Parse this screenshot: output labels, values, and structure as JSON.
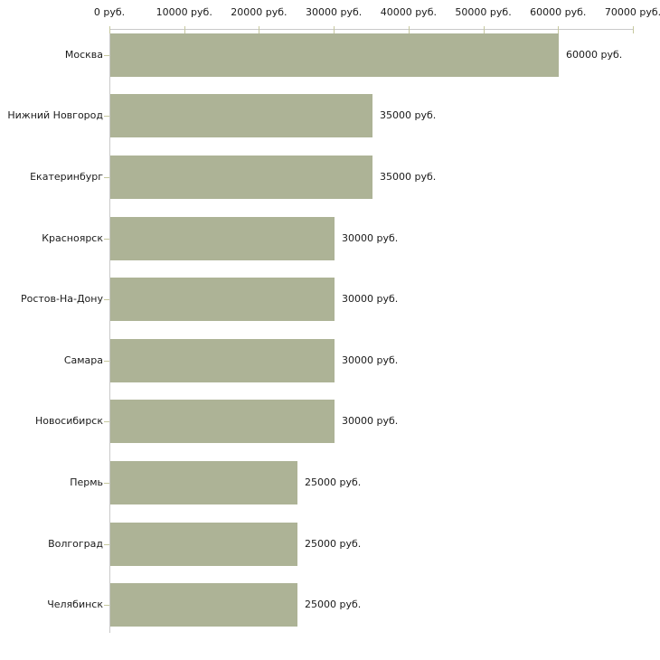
{
  "chart_data": {
    "type": "bar",
    "orientation": "horizontal",
    "title": "",
    "xlabel": "",
    "ylabel": "",
    "unit_suffix": " руб.",
    "categories": [
      "Москва",
      "Нижний Новгород",
      "Екатеринбург",
      "Красноярск",
      "Ростов-На-Дону",
      "Самара",
      "Новосибирск",
      "Пермь",
      "Волгоград",
      "Челябинск"
    ],
    "values": [
      60000,
      35000,
      35000,
      30000,
      30000,
      30000,
      30000,
      25000,
      25000,
      25000
    ],
    "value_labels": [
      "60000 руб.",
      "35000 руб.",
      "35000 руб.",
      "30000 руб.",
      "30000 руб.",
      "30000 руб.",
      "30000 руб.",
      "25000 руб.",
      "25000 руб.",
      "25000 руб."
    ],
    "x_tick_labels": [
      "0 руб.",
      "10000 руб.",
      "20000 руб.",
      "30000 руб.",
      "40000 руб.",
      "50000 руб.",
      "60000 руб.",
      "70000 руб."
    ],
    "x_tick_values": [
      0,
      10000,
      20000,
      30000,
      40000,
      50000,
      60000,
      70000
    ],
    "xlim": [
      0,
      70000
    ],
    "grid": false,
    "legend": false,
    "colors": {
      "bar": "#adb396",
      "axis_line": "#c9c9c9",
      "tick_mark": "#c6c89e",
      "text": "#1a1a1a",
      "background": "#ffffff"
    }
  }
}
